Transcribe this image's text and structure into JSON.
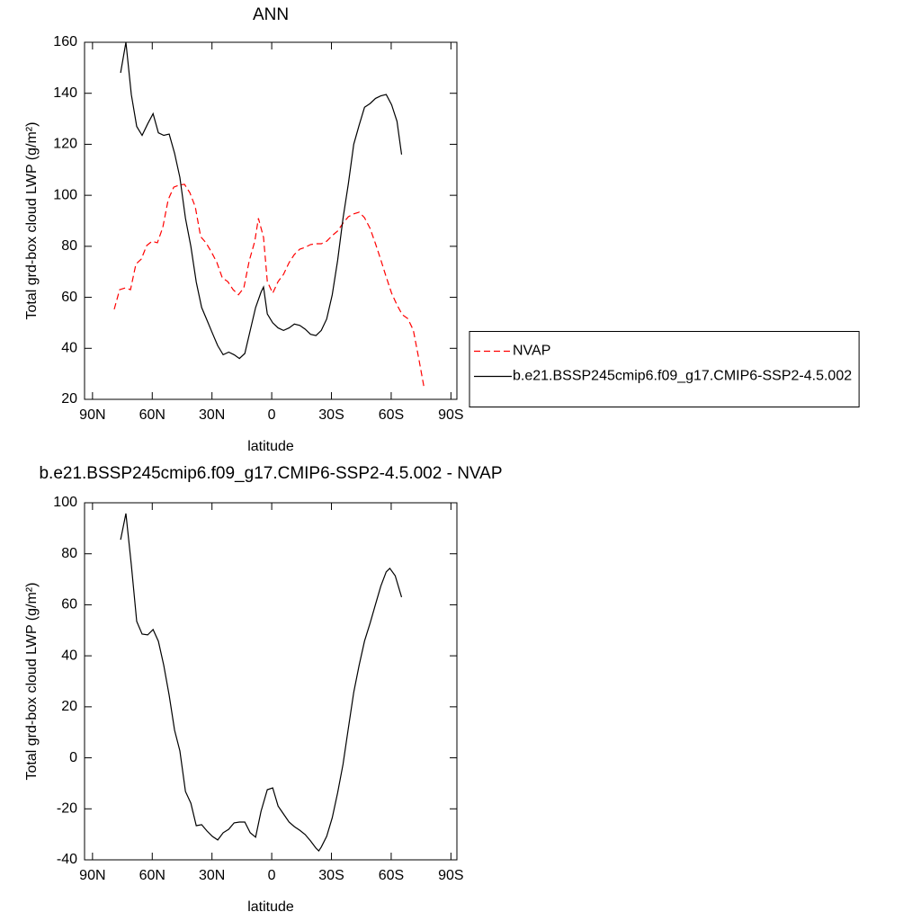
{
  "chart_data": [
    {
      "type": "line",
      "title": "ANN",
      "xlabel": "latitude",
      "ylabel": "Total grd-box cloud LWP (g/m²)",
      "xlim": [
        94,
        -93
      ],
      "ylim": [
        20,
        160
      ],
      "xticks": [
        {
          "value": 90,
          "label": "90N"
        },
        {
          "value": 60,
          "label": "60N"
        },
        {
          "value": 30,
          "label": "30N"
        },
        0,
        {
          "value": -30,
          "label": "30S"
        },
        {
          "value": -60,
          "label": "60S"
        },
        {
          "value": -90,
          "label": "90S"
        }
      ],
      "yticks": [
        20,
        40,
        60,
        80,
        100,
        120,
        140,
        160
      ],
      "legend": "right",
      "series": [
        {
          "name": "NVAP",
          "color": "#ff0000",
          "line_style": "dashed",
          "x": [
            79.1,
            76.4,
            73.6,
            70.9,
            68.2,
            65.5,
            62.8,
            60.1,
            57.4,
            54.7,
            52.0,
            49.2,
            46.5,
            43.8,
            41.1,
            38.4,
            35.7,
            33.0,
            30.3,
            27.5,
            24.8,
            22.1,
            19.4,
            16.7,
            14.0,
            11.3,
            8.5,
            6.7,
            4.1,
            2.2,
            -0.5,
            -3.2,
            -5.9,
            -8.7,
            -11.4,
            -14.1,
            -16.8,
            -19.5,
            -22.2,
            -24.9,
            -27.6,
            -30.4,
            -33.1,
            -35.8,
            -38.5,
            -41.2,
            -43.9,
            -46.6,
            -49.4,
            -52.1,
            -54.8,
            -57.5,
            -60.2,
            -62.9,
            -65.6,
            -68.3,
            -71.1,
            -73.8,
            -76.5
          ],
          "values": [
            55.3,
            63,
            63.7,
            63,
            73,
            75,
            80.3,
            82,
            81.4,
            87.4,
            98.3,
            103.2,
            104,
            104.3,
            101,
            95.5,
            83.8,
            81.4,
            77.8,
            73.6,
            67.6,
            66.2,
            63,
            61,
            63.7,
            74.3,
            82,
            91,
            83.5,
            66.2,
            61.6,
            66.2,
            69,
            73.6,
            76.8,
            78.9,
            79.6,
            80.7,
            81,
            81,
            82,
            84.2,
            86,
            89.1,
            91.6,
            92.7,
            93.4,
            91.2,
            87,
            81,
            74.7,
            68,
            61.6,
            57,
            53.2,
            51.7,
            47.2,
            36.2,
            24.6
          ]
        },
        {
          "name": "b.e21.BSSP245cmip6.f09_g17.CMIP6-SSP2-4.5.002",
          "color": "#000000",
          "line_style": "solid",
          "x": [
            75.9,
            73.2,
            70.5,
            67.8,
            65.1,
            62.3,
            59.6,
            56.9,
            54.2,
            51.5,
            48.8,
            46.1,
            43.3,
            40.6,
            37.9,
            35.2,
            32.5,
            29.8,
            27.1,
            24.4,
            21.6,
            18.9,
            16.2,
            13.5,
            10.8,
            8.1,
            5.4,
            4.1,
            2.2,
            -0.5,
            -3.2,
            -5.9,
            -8.7,
            -11.4,
            -14.1,
            -16.8,
            -19.5,
            -22.2,
            -24.9,
            -27.6,
            -30.4,
            -33.1,
            -35.8,
            -38.5,
            -41.2,
            -43.9,
            -46.6,
            -49.4,
            -52.1,
            -54.8,
            -57.5,
            -60.2,
            -62.9,
            -65.2
          ],
          "values": [
            148,
            160,
            139.5,
            127,
            123.5,
            128,
            132,
            124.5,
            123.5,
            124,
            116.5,
            107,
            91,
            80,
            66,
            56,
            51,
            46,
            41,
            37.5,
            38.5,
            37.5,
            36,
            38,
            47,
            56,
            62,
            64,
            53.5,
            50,
            48,
            47,
            48,
            49.5,
            49,
            47.5,
            45.5,
            45,
            47,
            51.5,
            61,
            74.5,
            91,
            104.5,
            120,
            127.5,
            134.5,
            136,
            138,
            139,
            139.5,
            135.5,
            129,
            116
          ]
        }
      ]
    },
    {
      "type": "line",
      "title": "b.e21.BSSP245cmip6.f09_g17.CMIP6-SSP2-4.5.002 - NVAP",
      "xlabel": "latitude",
      "ylabel": "Total grd-box cloud LWP (g/m²)",
      "xlim": [
        94,
        -93
      ],
      "ylim": [
        -40,
        100
      ],
      "xticks": [
        {
          "value": 90,
          "label": "90N"
        },
        {
          "value": 60,
          "label": "60N"
        },
        {
          "value": 30,
          "label": "30N"
        },
        0,
        {
          "value": -30,
          "label": "30S"
        },
        {
          "value": -60,
          "label": "60S"
        },
        {
          "value": -90,
          "label": "90S"
        }
      ],
      "yticks": [
        -40,
        -20,
        0,
        20,
        40,
        60,
        80,
        100
      ],
      "series": [
        {
          "color": "#000000",
          "line_style": "solid",
          "x": [
            75.9,
            73.2,
            70.5,
            67.8,
            65.1,
            62.3,
            59.6,
            56.9,
            54.2,
            51.5,
            48.8,
            46.1,
            43.3,
            40.6,
            37.9,
            35.2,
            32.5,
            29.8,
            27.1,
            24.4,
            21.6,
            18.9,
            16.2,
            13.5,
            10.8,
            8.1,
            5.4,
            2.2,
            -0.5,
            -3.2,
            -5.9,
            -8.7,
            -11.4,
            -14.1,
            -16.8,
            -19.5,
            -22.2,
            -23.6,
            -24.9,
            -27.6,
            -30.4,
            -33.1,
            -35.8,
            -38.5,
            -41.2,
            -43.9,
            -46.6,
            -49.4,
            -52.1,
            -54.8,
            -57.5,
            -59.3,
            -62.0,
            -65.2
          ],
          "values": [
            85.5,
            95.8,
            75.7,
            53.5,
            48.5,
            48.2,
            50.3,
            45.7,
            36.2,
            24.5,
            10.8,
            2.7,
            -13.2,
            -17.8,
            -26.6,
            -26.2,
            -28.7,
            -30.8,
            -32.2,
            -29.4,
            -28,
            -25.5,
            -25.2,
            -25.2,
            -29.4,
            -31.1,
            -21,
            -12.5,
            -11.8,
            -18.9,
            -22,
            -25.2,
            -27,
            -28.4,
            -30.1,
            -32.6,
            -35.4,
            -36.5,
            -35,
            -30.8,
            -23.5,
            -13.7,
            -2.5,
            11.6,
            25.7,
            36.3,
            45.8,
            52.8,
            60.2,
            67.3,
            72.9,
            74.3,
            71.4,
            63
          ]
        }
      ]
    }
  ]
}
